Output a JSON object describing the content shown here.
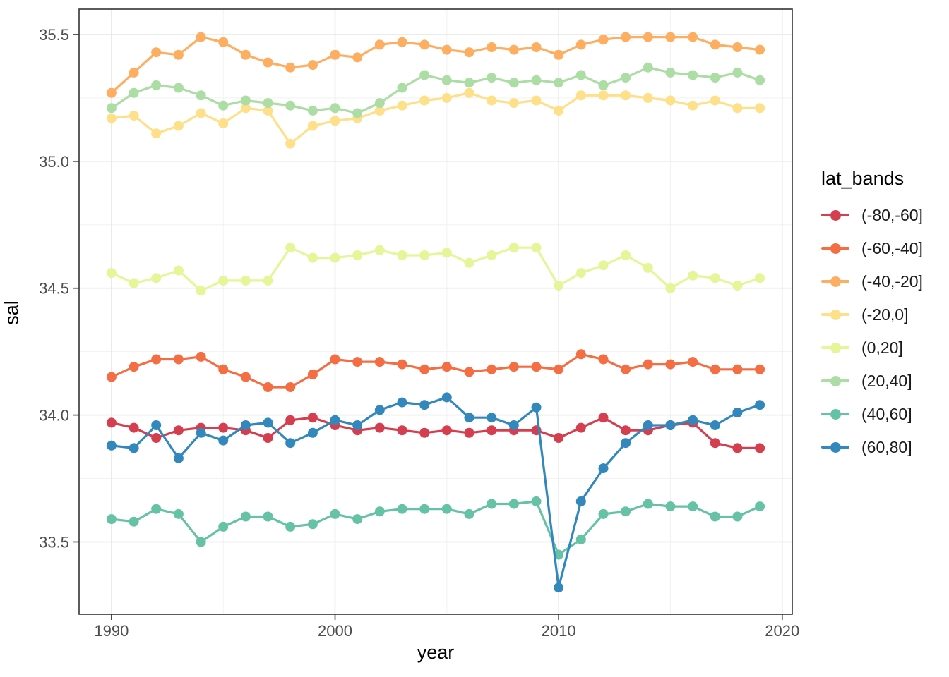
{
  "chart_data": {
    "type": "line",
    "title": "",
    "xlabel": "year",
    "ylabel": "sal",
    "legend_title": "lat_bands",
    "legend_position": "right",
    "grid": "on",
    "panel_background": "#FFFFFF",
    "grid_major_color": "#E8E8E8",
    "grid_minor_color": "#F2F2F2",
    "panel_border_color": "#333333",
    "tick_label_color": "#4D4D4D",
    "x": [
      1990,
      1991,
      1992,
      1993,
      1994,
      1995,
      1996,
      1997,
      1998,
      1999,
      2000,
      2001,
      2002,
      2003,
      2004,
      2005,
      2006,
      2007,
      2008,
      2009,
      2010,
      2011,
      2012,
      2013,
      2014,
      2015,
      2016,
      2017,
      2018,
      2019
    ],
    "xlim": [
      1988.55,
      2020.45
    ],
    "ylim": [
      33.215,
      35.6
    ],
    "x_ticks": {
      "values": [
        1990,
        2000,
        2010,
        2020
      ],
      "labels": [
        "1990",
        "2000",
        "2010",
        "2020"
      ],
      "minor": [
        1995,
        2005,
        2015
      ]
    },
    "y_ticks": {
      "values": [
        33.5,
        34.0,
        34.5,
        35.0,
        35.5
      ],
      "labels": [
        "33.5",
        "34.0",
        "34.5",
        "35.0",
        "35.5"
      ],
      "minor": [
        33.75,
        34.25,
        34.75,
        35.25
      ]
    },
    "series": [
      {
        "name": "(-80,-60]",
        "color": "#D53E4F",
        "values": [
          33.97,
          33.95,
          33.91,
          33.94,
          33.95,
          33.95,
          33.94,
          33.91,
          33.98,
          33.99,
          33.96,
          33.94,
          33.95,
          33.94,
          33.93,
          33.94,
          33.93,
          33.94,
          33.94,
          33.94,
          33.91,
          33.95,
          33.99,
          33.94,
          33.94,
          33.96,
          33.97,
          33.89,
          33.87,
          33.87
        ]
      },
      {
        "name": "(-60,-40]",
        "color": "#F46D43",
        "values": [
          34.15,
          34.19,
          34.22,
          34.22,
          34.23,
          34.18,
          34.15,
          34.11,
          34.11,
          34.16,
          34.22,
          34.21,
          34.21,
          34.2,
          34.18,
          34.19,
          34.17,
          34.18,
          34.19,
          34.19,
          34.18,
          34.24,
          34.22,
          34.18,
          34.2,
          34.2,
          34.21,
          34.18,
          34.18,
          34.18
        ]
      },
      {
        "name": "(-40,-20]",
        "color": "#FDAE61",
        "values": [
          35.27,
          35.35,
          35.43,
          35.42,
          35.49,
          35.47,
          35.42,
          35.39,
          35.37,
          35.38,
          35.42,
          35.41,
          35.46,
          35.47,
          35.46,
          35.44,
          35.43,
          35.45,
          35.44,
          35.45,
          35.42,
          35.46,
          35.48,
          35.49,
          35.49,
          35.49,
          35.49,
          35.46,
          35.45,
          35.44
        ]
      },
      {
        "name": "(-20,0]",
        "color": "#FEE08B",
        "values": [
          35.17,
          35.18,
          35.11,
          35.14,
          35.19,
          35.15,
          35.21,
          35.2,
          35.07,
          35.14,
          35.16,
          35.17,
          35.2,
          35.22,
          35.24,
          35.25,
          35.27,
          35.24,
          35.23,
          35.24,
          35.2,
          35.26,
          35.26,
          35.26,
          35.25,
          35.24,
          35.22,
          35.24,
          35.21,
          35.21
        ]
      },
      {
        "name": "(0,20]",
        "color": "#E6F598",
        "values": [
          34.56,
          34.52,
          34.54,
          34.57,
          34.49,
          34.53,
          34.53,
          34.53,
          34.66,
          34.62,
          34.62,
          34.63,
          34.65,
          34.63,
          34.63,
          34.64,
          34.6,
          34.63,
          34.66,
          34.66,
          34.51,
          34.56,
          34.59,
          34.63,
          34.58,
          34.5,
          34.55,
          34.54,
          34.51,
          34.54
        ]
      },
      {
        "name": "(20,40]",
        "color": "#ABDDA4",
        "values": [
          35.21,
          35.27,
          35.3,
          35.29,
          35.26,
          35.22,
          35.24,
          35.23,
          35.22,
          35.2,
          35.21,
          35.19,
          35.23,
          35.29,
          35.34,
          35.32,
          35.31,
          35.33,
          35.31,
          35.32,
          35.31,
          35.34,
          35.3,
          35.33,
          35.37,
          35.35,
          35.34,
          35.33,
          35.35,
          35.32
        ]
      },
      {
        "name": "(40,60]",
        "color": "#66C2A5",
        "values": [
          33.59,
          33.58,
          33.63,
          33.61,
          33.5,
          33.56,
          33.6,
          33.6,
          33.56,
          33.57,
          33.61,
          33.59,
          33.62,
          33.63,
          33.63,
          33.63,
          33.61,
          33.65,
          33.65,
          33.66,
          33.45,
          33.51,
          33.61,
          33.62,
          33.65,
          33.64,
          33.64,
          33.6,
          33.6,
          33.64
        ]
      },
      {
        "name": "(60,80]",
        "color": "#3288BD",
        "values": [
          33.88,
          33.87,
          33.96,
          33.83,
          33.93,
          33.9,
          33.96,
          33.97,
          33.89,
          33.93,
          33.98,
          33.96,
          34.02,
          34.05,
          34.04,
          34.07,
          33.99,
          33.99,
          33.96,
          34.03,
          33.32,
          33.66,
          33.79,
          33.89,
          33.96,
          33.96,
          33.98,
          33.96,
          34.01,
          34.04
        ]
      }
    ]
  }
}
